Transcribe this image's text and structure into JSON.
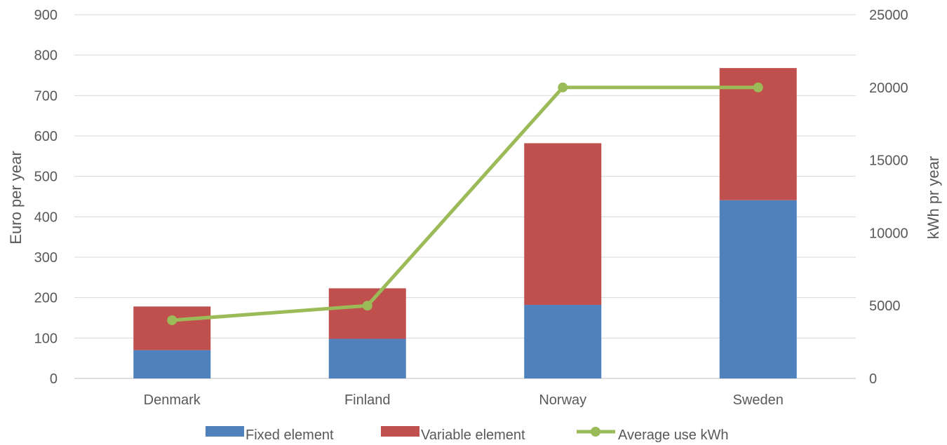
{
  "chart_data": {
    "type": "bar",
    "stacked": true,
    "categories": [
      "Denmark",
      "Finland",
      "Norway",
      "Sweden"
    ],
    "series": [
      {
        "name": "Fixed element",
        "type": "bar",
        "axis": "left",
        "color": "#4F81BD",
        "values": [
          70,
          98,
          182,
          441
        ]
      },
      {
        "name": "Variable element",
        "type": "bar",
        "axis": "left",
        "color": "#C0504D",
        "values": [
          108,
          125,
          400,
          327
        ]
      },
      {
        "name": "Average use kWh",
        "type": "line",
        "axis": "right",
        "color": "#9BBB59",
        "values": [
          4000,
          5000,
          20000,
          20000
        ]
      }
    ],
    "ylabel": "Euro per year",
    "y2label": "kWh pr year",
    "ylim": [
      0,
      900
    ],
    "y2lim": [
      0,
      25000
    ],
    "yticks": [
      "0",
      "100",
      "200",
      "300",
      "400",
      "500",
      "600",
      "700",
      "800",
      "900"
    ],
    "y2ticks": [
      "0",
      "5000",
      "10000",
      "15000",
      "20000",
      "25000"
    ],
    "grid": true,
    "legend": "bottom"
  }
}
